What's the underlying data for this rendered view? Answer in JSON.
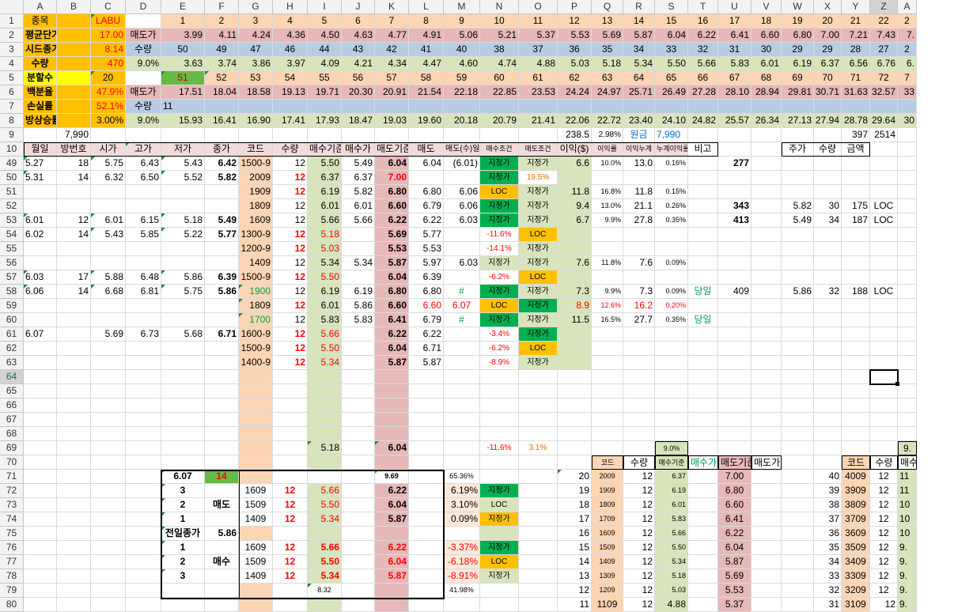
{
  "columns": [
    "A",
    "B",
    "C",
    "D",
    "E",
    "F",
    "G",
    "H",
    "I",
    "J",
    "K",
    "L",
    "M",
    "N",
    "O",
    "P",
    "Q",
    "R",
    "S",
    "T",
    "U",
    "V",
    "W",
    "X",
    "Y",
    "Z",
    "A"
  ],
  "rows": [
    "1",
    "2",
    "3",
    "4",
    "5",
    "6",
    "7",
    "8",
    "9",
    "10",
    "49",
    "50",
    "51",
    "52",
    "53",
    "54",
    "55",
    "56",
    "57",
    "58",
    "59",
    "60",
    "61",
    "62",
    "63",
    "64",
    "65",
    "66",
    "67",
    "68",
    "69",
    "70",
    "71",
    "72",
    "73",
    "74",
    "75",
    "76",
    "77",
    "78",
    "79",
    "80"
  ],
  "cells": [
    [
      "종목",
      "",
      "LABU",
      "",
      "1",
      "2",
      "3",
      "4",
      "5",
      "6",
      "7",
      "8",
      "9",
      "10",
      "11",
      "12",
      "13",
      "14",
      "15",
      "16",
      "17",
      "18",
      "19",
      "20",
      "21",
      "22",
      "2"
    ],
    [
      "평균단가",
      "",
      "17.00",
      "매도가",
      "3.99",
      "4.11",
      "4.24",
      "4.36",
      "4.50",
      "4.63",
      "4.77",
      "4.91",
      "5.06",
      "5.21",
      "5.37",
      "5.53",
      "5.69",
      "5.87",
      "6.04",
      "6.22",
      "6.41",
      "6.60",
      "6.80",
      "7.00",
      "7.21",
      "7.43",
      "7."
    ],
    [
      "시드종가",
      "",
      "8.14",
      "수량",
      "50",
      "49",
      "47",
      "46",
      "44",
      "43",
      "42",
      "41",
      "40",
      "38",
      "37",
      "36",
      "35",
      "34",
      "33",
      "32",
      "31",
      "30",
      "29",
      "29",
      "28",
      "27",
      "2"
    ],
    [
      "수량",
      "",
      "470",
      "9.0%",
      "3.63",
      "3.74",
      "3.86",
      "3.97",
      "4.09",
      "4.21",
      "4.34",
      "4.47",
      "4.60",
      "4.74",
      "4.88",
      "5.03",
      "5.18",
      "5.34",
      "5.50",
      "5.66",
      "5.83",
      "6.01",
      "6.19",
      "6.37",
      "6.56",
      "6.76",
      "6."
    ],
    [
      "분할수",
      "",
      "20",
      "",
      "51",
      "52",
      "53",
      "54",
      "55",
      "56",
      "57",
      "58",
      "59",
      "60",
      "61",
      "62",
      "63",
      "64",
      "65",
      "66",
      "67",
      "68",
      "69",
      "70",
      "71",
      "72",
      "7"
    ],
    [
      "백분율",
      "",
      "47.9%",
      "매도가",
      "17.51",
      "18.04",
      "18.58",
      "19.13",
      "19.71",
      "20.30",
      "20.91",
      "21.54",
      "22.18",
      "22.85",
      "23.53",
      "24.24",
      "24.97",
      "25.71",
      "26.49",
      "27.28",
      "28.10",
      "28.94",
      "29.81",
      "30.71",
      "31.63",
      "32.57",
      "33"
    ],
    [
      "손실률",
      "",
      "52.1%",
      "수량",
      "11",
      "",
      "",
      "",
      "",
      "",
      "",
      "",
      "",
      "",
      "",
      "",
      "",
      "",
      "",
      "",
      "",
      "",
      "",
      "",
      "",
      "",
      ""
    ],
    [
      "방상승률",
      "",
      "3.00%",
      "9.0%",
      "15.93",
      "16.41",
      "16.90",
      "17.41",
      "17.93",
      "18.47",
      "19.03",
      "19.60",
      "20.18",
      "20.79",
      "21.41",
      "22.06",
      "22.72",
      "23.40",
      "24.10",
      "24.82",
      "25.57",
      "26.34",
      "27.13",
      "27.94",
      "28.78",
      "29.64",
      "30"
    ],
    [
      "",
      "7,990",
      "",
      "",
      "",
      "",
      "",
      "",
      "",
      "",
      "",
      "",
      "",
      "",
      "",
      "238.5",
      "2.98%",
      "원금",
      "7,990",
      "",
      "",
      "",
      "",
      "",
      "397",
      "2514",
      ""
    ],
    [
      "월일",
      "방번호",
      "시가",
      "고가",
      "저가",
      "종가",
      "코드",
      "수량",
      "매수기준",
      "매수가",
      "매도기준",
      "매도",
      "매도(수)일",
      "매수조건",
      "매도조건",
      "이익($)",
      "이익률",
      "이익누계",
      "누계이익률",
      "비고",
      "",
      "",
      "주가",
      "수량",
      "금액",
      "",
      ""
    ],
    [
      "5.27",
      "18",
      "5.75",
      "6.43",
      "5.43",
      "6.42",
      "1500-9",
      "12",
      "5.50",
      "5.49",
      "6.04",
      "6.04",
      "(6.01)",
      "지정가",
      "지정가",
      "6.6",
      "10.0%",
      "13.0",
      "0.16%",
      "",
      "277",
      "",
      "",
      "",
      "",
      "",
      ""
    ],
    [
      "5.31",
      "14",
      "6.32",
      "6.50",
      "5.52",
      "5.82",
      "2009",
      "12",
      "6.37",
      "6.37",
      "7.00",
      "",
      "",
      "지정가",
      "19.5%",
      "",
      "",
      "",
      "",
      "",
      "",
      "",
      "",
      "",
      "",
      "",
      ""
    ],
    [
      "",
      "",
      "",
      "",
      "",
      "",
      "1909",
      "12",
      "6.19",
      "5.82",
      "6.80",
      "6.80",
      "6.06",
      "LOC",
      "지정가",
      "11.8",
      "16.8%",
      "11.8",
      "0.15%",
      "",
      "",
      "",
      "",
      "",
      "",
      "",
      ""
    ],
    [
      "",
      "",
      "",
      "",
      "",
      "",
      "1809",
      "12",
      "6.01",
      "6.01",
      "6.60",
      "6.79",
      "6.06",
      "지정가",
      "지정가",
      "9.4",
      "13.0%",
      "21.1",
      "0.26%",
      "",
      "343",
      "",
      "5.82",
      "30",
      "175",
      "LOC",
      ""
    ],
    [
      "6.01",
      "12",
      "6.01",
      "6.15",
      "5.18",
      "5.49",
      "1609",
      "12",
      "5.66",
      "5.66",
      "6.22",
      "6.22",
      "6.03",
      "지정가",
      "지정가",
      "6.7",
      "9.9%",
      "27.8",
      "0.35%",
      "",
      "413",
      "",
      "5.49",
      "34",
      "187",
      "LOC",
      ""
    ],
    [
      "6.02",
      "14",
      "5.43",
      "5.85",
      "5.22",
      "5.77",
      "1300-9",
      "12",
      "5.18",
      "",
      "5.69",
      "5.77",
      "",
      "-11.6%",
      "LOC",
      "",
      "",
      "",
      "",
      "",
      "",
      "",
      "",
      "",
      "",
      "",
      ""
    ],
    [
      "",
      "",
      "",
      "",
      "",
      "",
      "1200-9",
      "12",
      "5.03",
      "",
      "5.53",
      "5.53",
      "",
      "-14.1%",
      "지정가",
      "",
      "",
      "",
      "",
      "",
      "",
      "",
      "",
      "",
      "",
      "",
      ""
    ],
    [
      "",
      "",
      "",
      "",
      "",
      "",
      "1409",
      "12",
      "5.34",
      "5.34",
      "5.87",
      "5.97",
      "6.03",
      "지정가",
      "지정가",
      "7.6",
      "11.8%",
      "7.6",
      "0.09%",
      "",
      "",
      "",
      "",
      "",
      "",
      "",
      ""
    ],
    [
      "6.03",
      "17",
      "5.88",
      "6.48",
      "5.86",
      "6.39",
      "1500-9",
      "12",
      "5.50",
      "",
      "6.04",
      "6.39",
      "",
      "-6.2%",
      "LOC",
      "",
      "",
      "",
      "",
      "",
      "",
      "",
      "",
      "",
      "",
      "",
      ""
    ],
    [
      "6.06",
      "14",
      "6.68",
      "6.81",
      "5.75",
      "5.86",
      "1900",
      "12",
      "6.19",
      "6.19",
      "6.80",
      "6.80",
      "#",
      "지정가",
      "지정가",
      "7.3",
      "9.9%",
      "7.3",
      "0.09%",
      "당일",
      "409",
      "",
      "5.86",
      "32",
      "188",
      "LOC",
      ""
    ],
    [
      "",
      "",
      "",
      "",
      "",
      "",
      "1809",
      "12",
      "6.01",
      "5.86",
      "6.60",
      "6.60",
      "6.07",
      "LOC",
      "지정가",
      "8.9",
      "12.6%",
      "16.2",
      "0.20%",
      "",
      "",
      "",
      "",
      "",
      "",
      "",
      ""
    ],
    [
      "",
      "",
      "",
      "",
      "",
      "",
      "1700",
      "12",
      "5.83",
      "5.83",
      "6.41",
      "6.79",
      "#",
      "지정가",
      "지정가",
      "11.5",
      "16.5%",
      "27.7",
      "0.35%",
      "당일",
      "",
      "",
      "",
      "",
      "",
      "",
      ""
    ],
    [
      "6.07",
      "",
      "5.69",
      "6.73",
      "5.68",
      "6.71",
      "1600-9",
      "12",
      "5.66",
      "",
      "6.22",
      "6.22",
      "",
      "-3.4%",
      "지정가",
      "",
      "",
      "",
      "",
      "",
      "",
      "",
      "",
      "",
      "",
      "",
      ""
    ],
    [
      "",
      "",
      "",
      "",
      "",
      "",
      "1500-9",
      "12",
      "5.50",
      "",
      "6.04",
      "6.71",
      "",
      "-6.2%",
      "LOC",
      "",
      "",
      "",
      "",
      "",
      "",
      "",
      "",
      "",
      "",
      "",
      ""
    ],
    [
      "",
      "",
      "",
      "",
      "",
      "",
      "1400-9",
      "12",
      "5.34",
      "",
      "5.87",
      "5.87",
      "",
      "-8.9%",
      "지정가",
      "",
      "",
      "",
      "",
      "",
      "",
      "",
      "",
      "",
      "",
      "",
      ""
    ],
    [
      "",
      "",
      "",
      "",
      "",
      "",
      "",
      "",
      "",
      "",
      "",
      "",
      "",
      "",
      "",
      "",
      "",
      "",
      "",
      "",
      "",
      "",
      "",
      "",
      "",
      "",
      ""
    ],
    [
      "",
      "",
      "",
      "",
      "",
      "",
      "",
      "",
      "",
      "",
      "",
      "",
      "",
      "",
      "",
      "",
      "",
      "",
      "",
      "",
      "",
      "",
      "",
      "",
      "",
      "",
      ""
    ],
    [
      "",
      "",
      "",
      "",
      "",
      "",
      "",
      "",
      "",
      "",
      "",
      "",
      "",
      "",
      "",
      "",
      "",
      "",
      "",
      "",
      "",
      "",
      "",
      "",
      "",
      "",
      ""
    ],
    [
      "",
      "",
      "",
      "",
      "",
      "",
      "",
      "",
      "",
      "",
      "",
      "",
      "",
      "",
      "",
      "",
      "",
      "",
      "",
      "",
      "",
      "",
      "",
      "",
      "",
      "",
      ""
    ],
    [
      "",
      "",
      "",
      "",
      "",
      "",
      "",
      "",
      "",
      "",
      "",
      "",
      "",
      "",
      "",
      "",
      "",
      "",
      "",
      "",
      "",
      "",
      "",
      "",
      "",
      "",
      ""
    ],
    [
      "",
      "",
      "",
      "",
      "",
      "",
      "",
      "",
      "5.18",
      "",
      "6.04",
      "",
      "",
      "-11.6%",
      "3.1%",
      "",
      "",
      "",
      "9.0%",
      "",
      "",
      "",
      "",
      "",
      "",
      "",
      "9."
    ],
    [
      "",
      "",
      "",
      "",
      "",
      "",
      "",
      "",
      "",
      "",
      "",
      "",
      "",
      "",
      "",
      "",
      "코드",
      "수량",
      "매수기준",
      "매수가",
      "매도기준",
      "매도가",
      "",
      "",
      "코드",
      "수량",
      "매수"
    ],
    [
      "",
      "",
      "",
      "",
      "6.07",
      "14",
      "",
      "",
      "",
      "",
      "9.69",
      "",
      "65.36%",
      "",
      "",
      "20",
      "2009",
      "12",
      "6.37",
      "",
      "7.00",
      "",
      "",
      "40",
      "4009",
      "12",
      "11"
    ],
    [
      "",
      "",
      "",
      "",
      "3",
      "",
      "1609",
      "12",
      "5.66",
      "",
      "6.22",
      "",
      "6.19%",
      "지정가",
      "",
      "19",
      "1909",
      "12",
      "6.19",
      "",
      "6.80",
      "",
      "",
      "39",
      "3909",
      "12",
      "11"
    ],
    [
      "",
      "",
      "",
      "",
      "2",
      "매도",
      "1509",
      "12",
      "5.50",
      "",
      "6.04",
      "",
      "3.10%",
      "LOC",
      "",
      "18",
      "1809",
      "12",
      "6.01",
      "",
      "6.60",
      "",
      "",
      "38",
      "3809",
      "12",
      "10"
    ],
    [
      "",
      "",
      "",
      "",
      "1",
      "",
      "1409",
      "12",
      "5.34",
      "",
      "5.87",
      "",
      "0.09%",
      "지정가",
      "",
      "17",
      "1709",
      "12",
      "5.83",
      "",
      "6.41",
      "",
      "",
      "37",
      "3709",
      "12",
      "10"
    ],
    [
      "",
      "",
      "",
      "",
      "전일종가",
      "5.86",
      "",
      "",
      "",
      "",
      "",
      "",
      "",
      "",
      "",
      "16",
      "1609",
      "12",
      "5.66",
      "",
      "6.22",
      "",
      "",
      "36",
      "3609",
      "12",
      "10"
    ],
    [
      "",
      "",
      "",
      "",
      "1",
      "",
      "1609",
      "12",
      "5.66",
      "",
      "6.22",
      "",
      "-3.37%",
      "지정가",
      "",
      "15",
      "1509",
      "12",
      "5.50",
      "",
      "6.04",
      "",
      "",
      "35",
      "3509",
      "12",
      "9."
    ],
    [
      "",
      "",
      "",
      "",
      "2",
      "매수",
      "1509",
      "12",
      "5.50",
      "",
      "6.04",
      "",
      "-6.18%",
      "LOC",
      "",
      "14",
      "1409",
      "12",
      "5.34",
      "",
      "5.87",
      "",
      "",
      "34",
      "3409",
      "12",
      "9."
    ],
    [
      "",
      "",
      "",
      "",
      "3",
      "",
      "1409",
      "12",
      "5.34",
      "",
      "5.87",
      "",
      "-8.91%",
      "지정가",
      "",
      "13",
      "1309",
      "12",
      "5.18",
      "",
      "5.69",
      "",
      "",
      "33",
      "3309",
      "12",
      "9."
    ],
    [
      "",
      "",
      "",
      "",
      "",
      "",
      "",
      "",
      "8.32",
      "",
      "",
      "",
      "41.98%",
      "",
      "",
      "12",
      "1209",
      "12",
      "5.03",
      "",
      "5.53",
      "",
      "",
      "32",
      "3209",
      "12",
      "9."
    ],
    [
      "",
      "",
      "",
      "",
      "",
      "",
      "",
      "",
      "",
      "",
      "",
      "",
      "",
      "",
      "",
      "11",
      "1109",
      "12",
      "4.88",
      "",
      "5.37",
      "",
      "",
      "31",
      "3109",
      "12",
      "9."
    ]
  ],
  "colors": {
    "orange_bg": "#ffc000",
    "yellow_bg": "#ffff00",
    "green_bg": "#00b050",
    "pink_bg": "#e6b8b7",
    "peach_bg": "#fcd5b4",
    "blue_bg": "#b8cce4",
    "lightgreen_bg": "#d8e4bc",
    "red_text": "#ff0000",
    "green_text": "#00a050"
  }
}
